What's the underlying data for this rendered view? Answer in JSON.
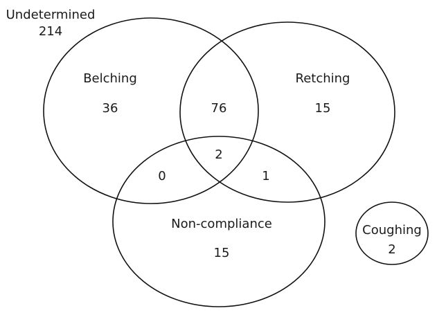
{
  "undetermined": {
    "label": "Undetermined",
    "count": 214
  },
  "sets": {
    "belching": {
      "label": "Belching",
      "count": 36
    },
    "retching": {
      "label": "Retching",
      "count": 15
    },
    "non_compliance": {
      "label": "Non-compliance",
      "count": 15
    },
    "coughing": {
      "label": "Coughing",
      "count": 2
    }
  },
  "overlaps": {
    "belching_retching": 76,
    "all_three": 2,
    "belching_non_compliance": 0,
    "retching_non_compliance": 1
  }
}
